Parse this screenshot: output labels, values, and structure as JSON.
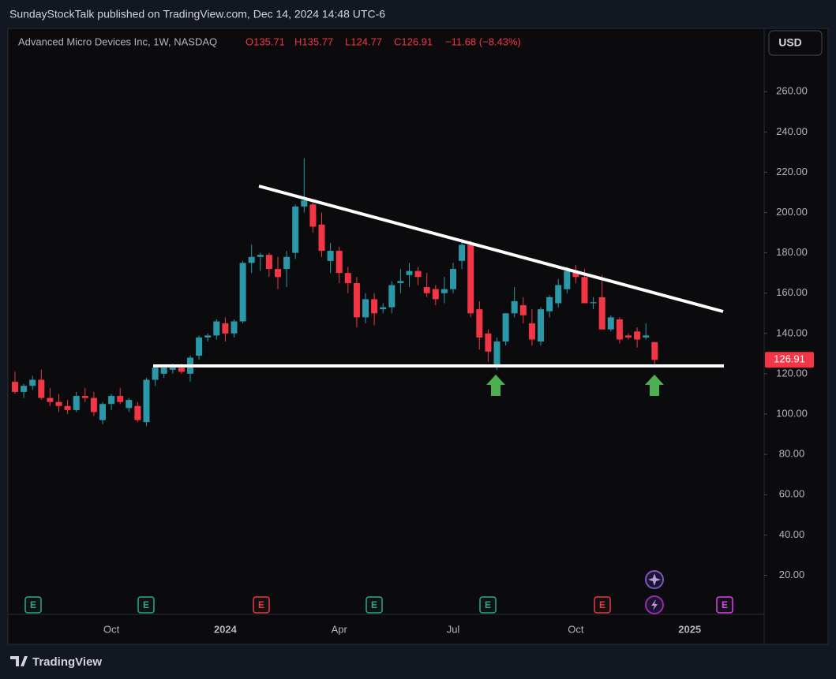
{
  "header": {
    "published": "SundayStockTalk published on TradingView.com, Dec 14, 2024 14:48 UTC-6"
  },
  "legend": {
    "symbol": "Advanced Micro Devices Inc, 1W, NASDAQ",
    "open": "O135.71",
    "high": "H135.77",
    "low": "L124.77",
    "close": "C126.91",
    "change": "−11.68 (−8.43%)"
  },
  "currency_button": "USD",
  "last_price_label": "126.91",
  "earnings_markers": [
    "E",
    "E",
    "E",
    "E",
    "E",
    "E",
    "E"
  ],
  "footer": {
    "logo": "TradingView"
  },
  "chart_data": {
    "type": "candlestick",
    "up_color": "#2a98a8",
    "down_color": "#f23645",
    "categories": [
      null,
      null,
      null,
      null,
      null,
      null,
      null,
      null,
      null,
      null,
      null,
      "Oct",
      null,
      null,
      null,
      null,
      null,
      null,
      null,
      null,
      null,
      null,
      null,
      null,
      "2024",
      null,
      null,
      null,
      null,
      null,
      null,
      null,
      null,
      null,
      null,
      null,
      null,
      "Apr",
      null,
      null,
      null,
      null,
      null,
      null,
      null,
      null,
      null,
      null,
      null,
      null,
      "Jul",
      null,
      null,
      null,
      null,
      null,
      null,
      null,
      null,
      null,
      null,
      null,
      null,
      null,
      "Oct",
      null,
      null,
      null,
      null,
      null,
      null,
      null,
      null,
      null,
      null,
      null,
      null,
      "2025"
    ],
    "open": [
      116,
      111,
      114,
      117,
      108,
      106,
      104,
      102,
      109,
      108,
      97,
      105,
      109,
      103,
      104,
      96,
      117,
      120,
      122,
      123,
      120,
      129,
      138,
      139,
      145,
      140,
      146,
      175,
      178,
      179,
      172,
      172,
      180,
      203,
      204,
      194,
      176,
      181,
      170,
      165,
      148,
      157,
      152,
      153,
      165,
      169,
      171,
      163,
      162,
      160,
      162,
      176,
      184,
      152,
      140,
      124,
      136,
      150,
      154,
      145,
      136,
      151,
      155,
      162,
      171,
      168,
      155,
      158,
      142,
      147,
      139,
      141,
      138,
      135.71,
      null,
      null,
      null,
      null
    ],
    "high": [
      121,
      115,
      119,
      122,
      113,
      110,
      107,
      111,
      113,
      111,
      106,
      110,
      113,
      108,
      106,
      118,
      124,
      124,
      125,
      125,
      129,
      139,
      140,
      147,
      148,
      147,
      176,
      184,
      180,
      180,
      178,
      181,
      204,
      227,
      205,
      200,
      185,
      183,
      173,
      168,
      160,
      160,
      155,
      166,
      172,
      175,
      173,
      170,
      164,
      168,
      175,
      187,
      186,
      156,
      142,
      138,
      150,
      163,
      158,
      152,
      153,
      159,
      167,
      173,
      174,
      172,
      158,
      169,
      149,
      148,
      140,
      143,
      145,
      135.77,
      null,
      null,
      null,
      null
    ],
    "low": [
      110,
      108,
      112,
      107,
      104,
      101,
      100,
      101,
      106,
      99,
      95,
      102,
      105,
      101,
      96,
      94,
      114,
      118,
      120,
      120,
      116,
      127,
      136,
      137,
      136,
      138,
      145,
      170,
      171,
      168,
      162,
      163,
      177,
      200,
      190,
      178,
      170,
      165,
      160,
      143,
      145,
      144,
      150,
      150,
      160,
      163,
      164,
      158,
      154,
      155,
      160,
      172,
      148,
      132,
      126,
      122,
      134,
      148,
      145,
      134,
      134,
      148,
      153,
      160,
      165,
      155,
      152,
      142,
      141,
      135,
      137,
      133,
      137,
      124.77,
      null,
      null,
      null,
      null
    ],
    "close": [
      111,
      114,
      117,
      108,
      106,
      104,
      102,
      109,
      108,
      101,
      105,
      109,
      106,
      107,
      97,
      117,
      123,
      123,
      123,
      121,
      128,
      138,
      139,
      146,
      140,
      146,
      175,
      178,
      179,
      172,
      168,
      178,
      203,
      206,
      193,
      181,
      181,
      170,
      165,
      148,
      157,
      150,
      153,
      164,
      166,
      171,
      168,
      160,
      157,
      162,
      172,
      184,
      150,
      138,
      131,
      136,
      150,
      156,
      149,
      137,
      152,
      158,
      164,
      171,
      168,
      155,
      155.5,
      142,
      148,
      137,
      138,
      137,
      139,
      126.91,
      null,
      null,
      null,
      null
    ],
    "ylim": [
      1,
      291
    ],
    "yticks": [
      {
        "value": 20,
        "label": "20.00"
      },
      {
        "value": 40,
        "label": "40.00"
      },
      {
        "value": 60,
        "label": "60.00"
      },
      {
        "value": 80,
        "label": "80.00"
      },
      {
        "value": 100,
        "label": "100.00"
      },
      {
        "value": 120,
        "label": "120.00"
      },
      {
        "value": 140,
        "label": "140.00"
      },
      {
        "value": 160,
        "label": "160.00"
      },
      {
        "value": 180,
        "label": "180.00"
      },
      {
        "value": 200,
        "label": "200.00"
      },
      {
        "value": 220,
        "label": "220.00"
      },
      {
        "value": 240,
        "label": "240.00"
      },
      {
        "value": 260,
        "label": "260.00"
      }
    ]
  }
}
